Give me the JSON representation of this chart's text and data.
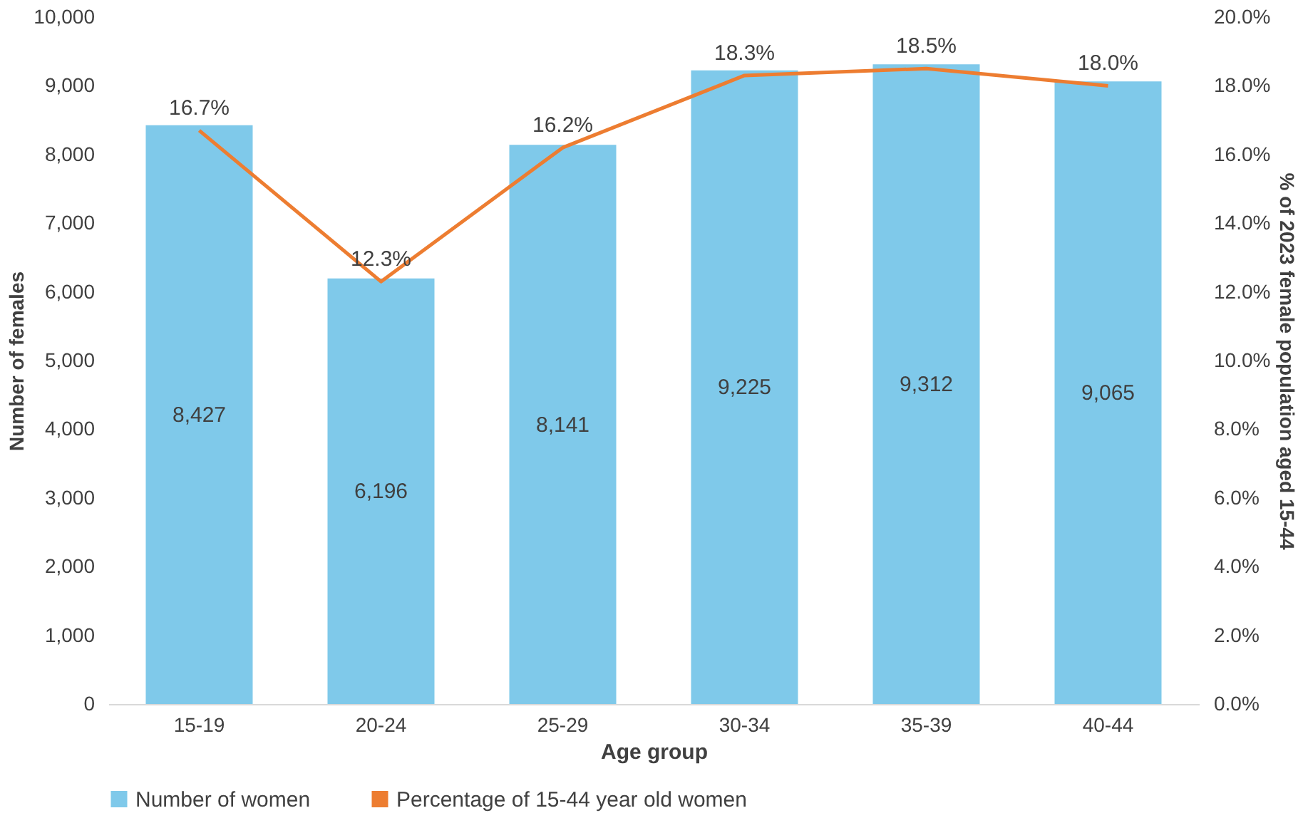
{
  "chart_data": {
    "type": "bar",
    "xlabel": "Age group",
    "ylabel": "Number of females",
    "y2label": "% of 2023 female population aged 15-44",
    "categories": [
      "15-19",
      "20-24",
      "25-29",
      "30-34",
      "35-39",
      "40-44"
    ],
    "series": [
      {
        "name": "Number of women",
        "color": "#7fc9ea",
        "values": [
          8427,
          6196,
          8141,
          9225,
          9312,
          9065
        ],
        "value_labels": [
          "8,427",
          "6,196",
          "8,141",
          "9,225",
          "9,312",
          "9,065"
        ]
      },
      {
        "name": "Percentage of 15-44 year old women",
        "type": "line",
        "axis": "y2",
        "color": "#ed7d31",
        "values": [
          16.7,
          12.3,
          16.2,
          18.3,
          18.5,
          18.0
        ],
        "value_labels": [
          "16.7%",
          "12.3%",
          "16.2%",
          "18.3%",
          "18.5%",
          "18.0%"
        ]
      }
    ],
    "ylim": [
      0,
      10000
    ],
    "yticks": [
      {
        "value": 0,
        "label": "0"
      },
      {
        "value": 1000,
        "label": "1,000"
      },
      {
        "value": 2000,
        "label": "2,000"
      },
      {
        "value": 3000,
        "label": "3,000"
      },
      {
        "value": 4000,
        "label": "4,000"
      },
      {
        "value": 5000,
        "label": "5,000"
      },
      {
        "value": 6000,
        "label": "6,000"
      },
      {
        "value": 7000,
        "label": "7,000"
      },
      {
        "value": 8000,
        "label": "8,000"
      },
      {
        "value": 9000,
        "label": "9,000"
      },
      {
        "value": 10000,
        "label": "10,000"
      }
    ],
    "y2lim": [
      0,
      20
    ],
    "y2ticks": [
      {
        "value": 0,
        "label": "0.0%"
      },
      {
        "value": 2,
        "label": "2.0%"
      },
      {
        "value": 4,
        "label": "4.0%"
      },
      {
        "value": 6,
        "label": "6.0%"
      },
      {
        "value": 8,
        "label": "8.0%"
      },
      {
        "value": 10,
        "label": "10.0%"
      },
      {
        "value": 12,
        "label": "12.0%"
      },
      {
        "value": 14,
        "label": "14.0%"
      },
      {
        "value": 16,
        "label": "16.0%"
      },
      {
        "value": 18,
        "label": "18.0%"
      },
      {
        "value": 20,
        "label": "20.0%"
      }
    ],
    "grid": false,
    "legend": "bottom",
    "marker": "none",
    "line_style": "solid"
  }
}
